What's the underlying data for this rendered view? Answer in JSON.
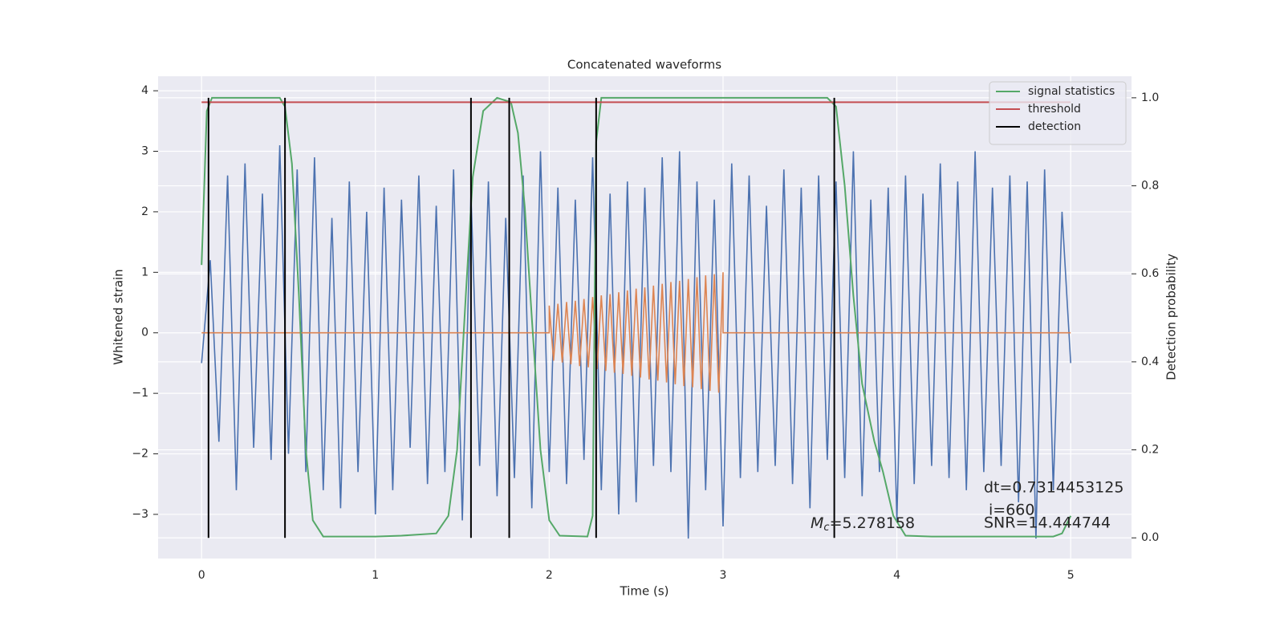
{
  "chart_data": {
    "type": "line",
    "title": "Concatenated waveforms",
    "xlabel": "Time (s)",
    "ylabel": "Whitened strain",
    "y2label": "Detection probability",
    "xlim": [
      -0.25,
      5.35
    ],
    "ylim": [
      -3.73,
      4.24
    ],
    "y2lim": [
      -0.047,
      1.049
    ],
    "xticks": [
      0,
      1,
      2,
      3,
      4,
      5
    ],
    "yticks": [
      {
        "value": -3,
        "label": "−3"
      },
      {
        "value": -2,
        "label": "−2"
      },
      {
        "value": -1,
        "label": "−1"
      },
      0,
      1,
      2,
      3,
      4
    ],
    "y2ticks": [
      {
        "value": 0,
        "label": "0.0"
      },
      {
        "value": 0.2,
        "label": "0.2"
      },
      {
        "value": 0.4,
        "label": "0.4"
      },
      {
        "value": 0.6,
        "label": "0.6"
      },
      {
        "value": 0.8,
        "label": "0.8"
      },
      {
        "value": 1,
        "label": "1.0"
      }
    ],
    "grid": true,
    "legend": "upper right",
    "series": [
      {
        "color": "#4c72b0",
        "x": [
          0,
          0.05,
          0.1,
          0.15,
          0.2,
          0.25,
          0.3,
          0.35,
          0.4,
          0.45,
          0.5,
          0.55,
          0.6,
          0.65,
          0.7,
          0.75,
          0.8,
          0.85,
          0.9,
          0.95,
          1,
          1.05,
          1.1,
          1.15,
          1.2,
          1.25,
          1.3,
          1.35,
          1.4,
          1.45,
          1.5,
          1.55,
          1.6,
          1.65,
          1.7,
          1.75,
          1.8,
          1.85,
          1.9,
          1.95,
          2,
          2.05,
          2.1,
          2.15,
          2.2,
          2.25,
          2.3,
          2.35,
          2.4,
          2.45,
          2.5,
          2.55,
          2.6,
          2.65,
          2.7,
          2.75,
          2.8,
          2.85,
          2.9,
          2.95,
          3,
          3.05,
          3.1,
          3.15,
          3.2,
          3.25,
          3.3,
          3.35,
          3.4,
          3.45,
          3.5,
          3.55,
          3.6,
          3.65,
          3.7,
          3.75,
          3.8,
          3.85,
          3.9,
          3.95,
          4,
          4.05,
          4.1,
          4.15,
          4.2,
          4.25,
          4.3,
          4.35,
          4.4,
          4.45,
          4.5,
          4.55,
          4.6,
          4.65,
          4.7,
          4.75,
          4.8,
          4.85,
          4.9,
          4.95,
          5
        ],
        "values": [
          -0.5,
          1.2,
          -1.8,
          2.6,
          -2.6,
          2.8,
          -1.9,
          2.3,
          -2.1,
          3.1,
          -2.0,
          2.7,
          -2.3,
          2.9,
          -2.6,
          1.9,
          -2.9,
          2.5,
          -2.3,
          2.0,
          -3.0,
          2.4,
          -2.6,
          2.2,
          -1.9,
          2.6,
          -2.5,
          2.1,
          -2.3,
          2.7,
          -3.1,
          2.3,
          -2.2,
          2.5,
          -2.7,
          1.9,
          -2.4,
          2.6,
          -2.9,
          3.0,
          -2.3,
          2.4,
          -2.5,
          2.2,
          -2.1,
          2.9,
          -2.6,
          2.3,
          -3.0,
          2.5,
          -2.8,
          2.4,
          -2.2,
          2.9,
          -2.3,
          3.0,
          -3.4,
          2.5,
          -2.6,
          2.2,
          -3.2,
          2.8,
          -2.4,
          2.6,
          -2.3,
          2.1,
          -2.2,
          2.7,
          -2.5,
          2.4,
          -2.9,
          2.6,
          -2.1,
          2.5,
          -2.4,
          3.0,
          -2.7,
          2.2,
          -2.3,
          2.4,
          -3.1,
          2.6,
          -2.5,
          2.3,
          -2.2,
          2.8,
          -2.4,
          2.5,
          -2.6,
          3.0,
          -2.3,
          2.4,
          -2.2,
          2.6,
          -2.8,
          2.5,
          -3.4,
          2.7,
          -2.6,
          2.0,
          -0.5
        ]
      },
      {
        "color": "#dd8452",
        "x": [
          0,
          2.0,
          2.0,
          2.025,
          2.05,
          2.075,
          2.1,
          2.125,
          2.15,
          2.175,
          2.2,
          2.225,
          2.25,
          2.275,
          2.3,
          2.325,
          2.35,
          2.375,
          2.4,
          2.425,
          2.45,
          2.475,
          2.5,
          2.525,
          2.55,
          2.575,
          2.6,
          2.625,
          2.65,
          2.675,
          2.7,
          2.725,
          2.75,
          2.775,
          2.8,
          2.825,
          2.85,
          2.875,
          2.9,
          2.925,
          2.95,
          2.975,
          3.0,
          3.0,
          5.0
        ],
        "values": [
          0,
          0,
          0.45,
          -0.46,
          0.48,
          -0.49,
          0.51,
          -0.52,
          0.53,
          -0.55,
          0.56,
          -0.57,
          0.59,
          -0.6,
          0.62,
          -0.63,
          0.64,
          -0.66,
          0.67,
          -0.68,
          0.7,
          -0.71,
          0.73,
          -0.74,
          0.75,
          -0.77,
          0.78,
          -0.79,
          0.81,
          -0.82,
          0.84,
          -0.85,
          0.86,
          -0.88,
          0.89,
          -0.9,
          0.92,
          -0.93,
          0.95,
          -0.96,
          0.97,
          -0.99,
          1.0,
          0,
          0
        ]
      },
      {
        "name": "signal statistics",
        "color": "#55a868",
        "axis": "y2",
        "x": [
          0,
          0.03,
          0.06,
          0.45,
          0.48,
          0.52,
          0.56,
          0.6,
          0.64,
          0.7,
          1.0,
          1.15,
          1.35,
          1.42,
          1.47,
          1.52,
          1.56,
          1.62,
          1.7,
          1.78,
          1.82,
          1.86,
          1.9,
          1.95,
          2.0,
          2.06,
          2.22,
          2.25,
          2.27,
          2.3,
          3.6,
          3.65,
          3.7,
          3.75,
          3.8,
          3.87,
          3.92,
          3.98,
          4.05,
          4.2,
          4.9,
          4.95,
          5.0
        ],
        "values": [
          0.62,
          0.97,
          1.0,
          1.0,
          0.98,
          0.85,
          0.55,
          0.2,
          0.04,
          0.003,
          0.003,
          0.005,
          0.01,
          0.05,
          0.2,
          0.55,
          0.82,
          0.97,
          1.0,
          0.99,
          0.92,
          0.75,
          0.5,
          0.2,
          0.04,
          0.005,
          0.003,
          0.05,
          0.9,
          1.0,
          1.0,
          0.98,
          0.8,
          0.55,
          0.35,
          0.22,
          0.15,
          0.05,
          0.005,
          0.003,
          0.003,
          0.01,
          0.05
        ]
      },
      {
        "name": "threshold",
        "color": "#c44e52",
        "axis": "y2",
        "x": [
          0,
          5
        ],
        "values": [
          0.99,
          0.99
        ]
      },
      {
        "name": "detection",
        "color": "#000000",
        "axis": "y2",
        "x": [
          0.04,
          0.48,
          1.55,
          1.77,
          2.27,
          3.64
        ],
        "y2range": [
          0,
          1
        ]
      }
    ],
    "annotations": [
      {
        "symbol": "M",
        "subscript": "c",
        "text": "=5.278158"
      },
      {
        "text": "dt=0.7314453125"
      },
      {
        "text": "i=660"
      },
      {
        "text": "SNR=14.444744"
      }
    ]
  }
}
